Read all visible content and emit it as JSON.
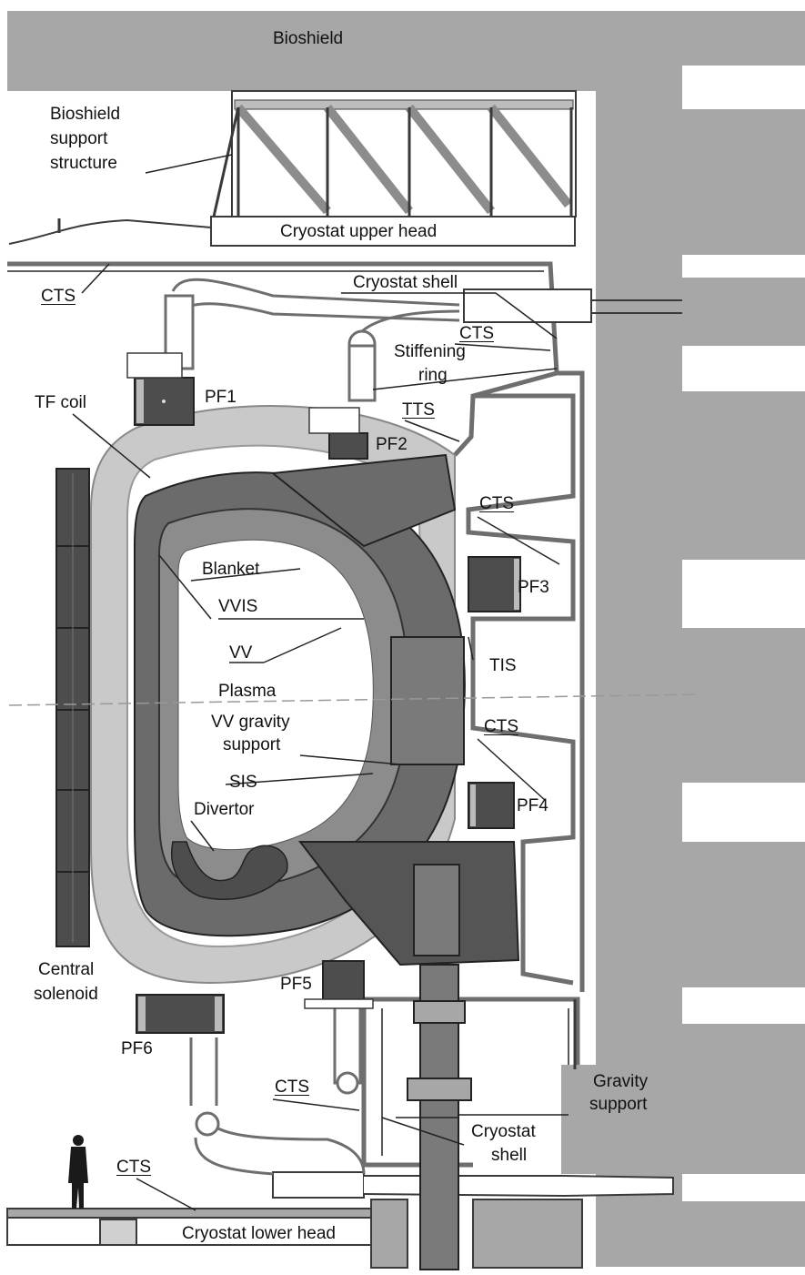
{
  "labels": {
    "bioshield": "Bioshield",
    "bioshield_support_1": "Bioshield",
    "bioshield_support_2": "support",
    "bioshield_support_3": "structure",
    "cryostat_upper_head": "Cryostat upper head",
    "cts_top_left": "CTS",
    "cryostat_shell_top": "Cryostat shell",
    "cts_top_right": "CTS",
    "stiffening_1": "Stiffening",
    "stiffening_2": "ring",
    "pf1": "PF1",
    "tf_coil": "TF coil",
    "tts": "TTS",
    "pf2": "PF2",
    "cts_pf3": "CTS",
    "blanket": "Blanket",
    "pf3": "PF3",
    "vvis": "VVIS",
    "vv": "VV",
    "tis": "TIS",
    "plasma": "Plasma",
    "cts_pf4": "CTS",
    "vv_gravity_1": "VV gravity",
    "vv_gravity_2": "support",
    "sis": "SIS",
    "pf4": "PF4",
    "divertor": "Divertor",
    "central_solenoid_1": "Central",
    "central_solenoid_2": "solenoid",
    "pf5": "PF5",
    "pf6": "PF6",
    "gravity_support_1": "Gravity",
    "gravity_support_2": "support",
    "cts_bottom_mid": "CTS",
    "cryostat_shell_bottom_1": "Cryostat",
    "cryostat_shell_bottom_2": "shell",
    "cts_bottom_left": "CTS",
    "cryostat_lower_head": "Cryostat lower head"
  },
  "colors": {
    "wall": "#a7a7a7",
    "wall_dark": "#8c8c8c",
    "coil_dark": "#4d4d4d",
    "tf_coil_light": "#c9c9c9",
    "blanket": "#6b6b6b",
    "line": "#3a3a3a"
  }
}
